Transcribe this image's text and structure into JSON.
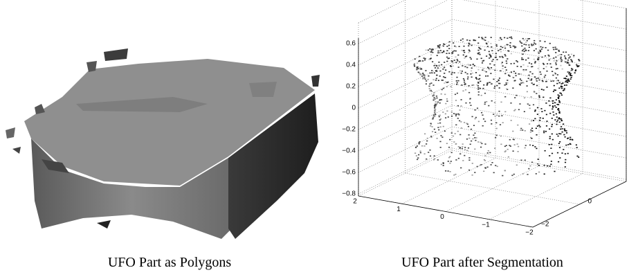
{
  "panels": [
    {
      "caption": "UFO Part as Polygons"
    },
    {
      "caption": "UFO Part after Segmentation",
      "plot": {
        "z_ticks": [
          "0.6",
          "0.4",
          "0.2",
          "0",
          "−0.2",
          "−0.4",
          "−0.6",
          "−0.8"
        ],
        "x_ticks": [
          "2",
          "1",
          "0",
          "−1",
          "−2"
        ],
        "y_ticks": [
          "−2",
          "0"
        ]
      }
    }
  ]
}
